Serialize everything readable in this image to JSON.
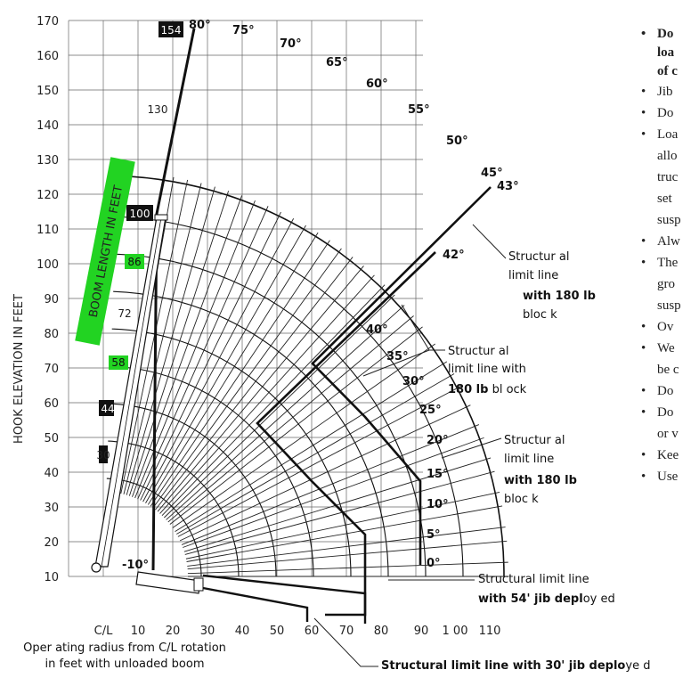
{
  "chart_data": {
    "type": "diagram",
    "ylabel": "HOOK ELEVATION IN FEET",
    "xlabel_line1": "Oper ating radius from C/L rotation",
    "xlabel_line2": "in feet with unloaded boom",
    "y_ticks": [
      "10",
      "20",
      "30",
      "40",
      "50",
      "60",
      "70",
      "80",
      "90",
      "100",
      "110",
      "120",
      "130",
      "140",
      "150",
      "160",
      "170"
    ],
    "x_ticks": [
      "C/L",
      "10",
      "20",
      "30",
      "40",
      "50",
      "60",
      "70",
      "80",
      "90",
      "1 00",
      "110"
    ],
    "boom_length_title": "BOOM LENGTH IN FEET",
    "boom_lengths": [
      {
        "label": "154",
        "style": "black"
      },
      {
        "label": "130",
        "style": "plain"
      },
      {
        "label": "100",
        "style": "black"
      },
      {
        "label": "86",
        "style": "green"
      },
      {
        "label": "72",
        "style": "plain"
      },
      {
        "label": "58",
        "style": "green"
      },
      {
        "label": "44",
        "style": "black"
      },
      {
        "label": "30",
        "style": "black"
      }
    ],
    "boom_angles": [
      "80°",
      "75°",
      "70°",
      "65°",
      "60°",
      "55°",
      "50°",
      "45°",
      "43°",
      "42°",
      "40°",
      "35°",
      "30°",
      "25°",
      "20°",
      "15°",
      "10°",
      "5°",
      "0°",
      "-10°"
    ],
    "annotations": [
      {
        "line1": "Structur al",
        "line2": "limit line",
        "line3": "with 180 lb",
        "line4": "bloc k"
      },
      {
        "line1": "Structur al",
        "line2": "limit line with",
        "line3": "180 lb",
        "line3b": " bl ock"
      },
      {
        "line1": "Structur al",
        "line2": "limit line",
        "line3": "with 180 lb",
        "line4": "bloc k"
      },
      {
        "line1": "Structural limit line",
        "line2": "with 54' jib depl",
        "line2b": "oy ed"
      },
      {
        "line1": "Structural limit line with 30' jib deplo",
        "line1b": "ye d"
      }
    ]
  },
  "notes": [
    {
      "text": "Do",
      "bold": true
    },
    {
      "text": "loa",
      "bold": true,
      "cont": true
    },
    {
      "text": "of c",
      "bold": true,
      "cont": true
    },
    {
      "text": "Jib"
    },
    {
      "text": "Do"
    },
    {
      "text": "Loa"
    },
    {
      "text": "allo",
      "cont": true
    },
    {
      "text": "truc",
      "cont": true
    },
    {
      "text": "set",
      "cont": true
    },
    {
      "text": "susp",
      "cont": true
    },
    {
      "text": "Alw"
    },
    {
      "text": "The"
    },
    {
      "text": "gro",
      "cont": true
    },
    {
      "text": "susp",
      "cont": true
    },
    {
      "text": "Ov"
    },
    {
      "text": "We"
    },
    {
      "text": "be c",
      "cont": true
    },
    {
      "text": "Do"
    },
    {
      "text": "Do"
    },
    {
      "text": "or v",
      "cont": true
    },
    {
      "text": "Kee"
    },
    {
      "text": "Use"
    }
  ]
}
